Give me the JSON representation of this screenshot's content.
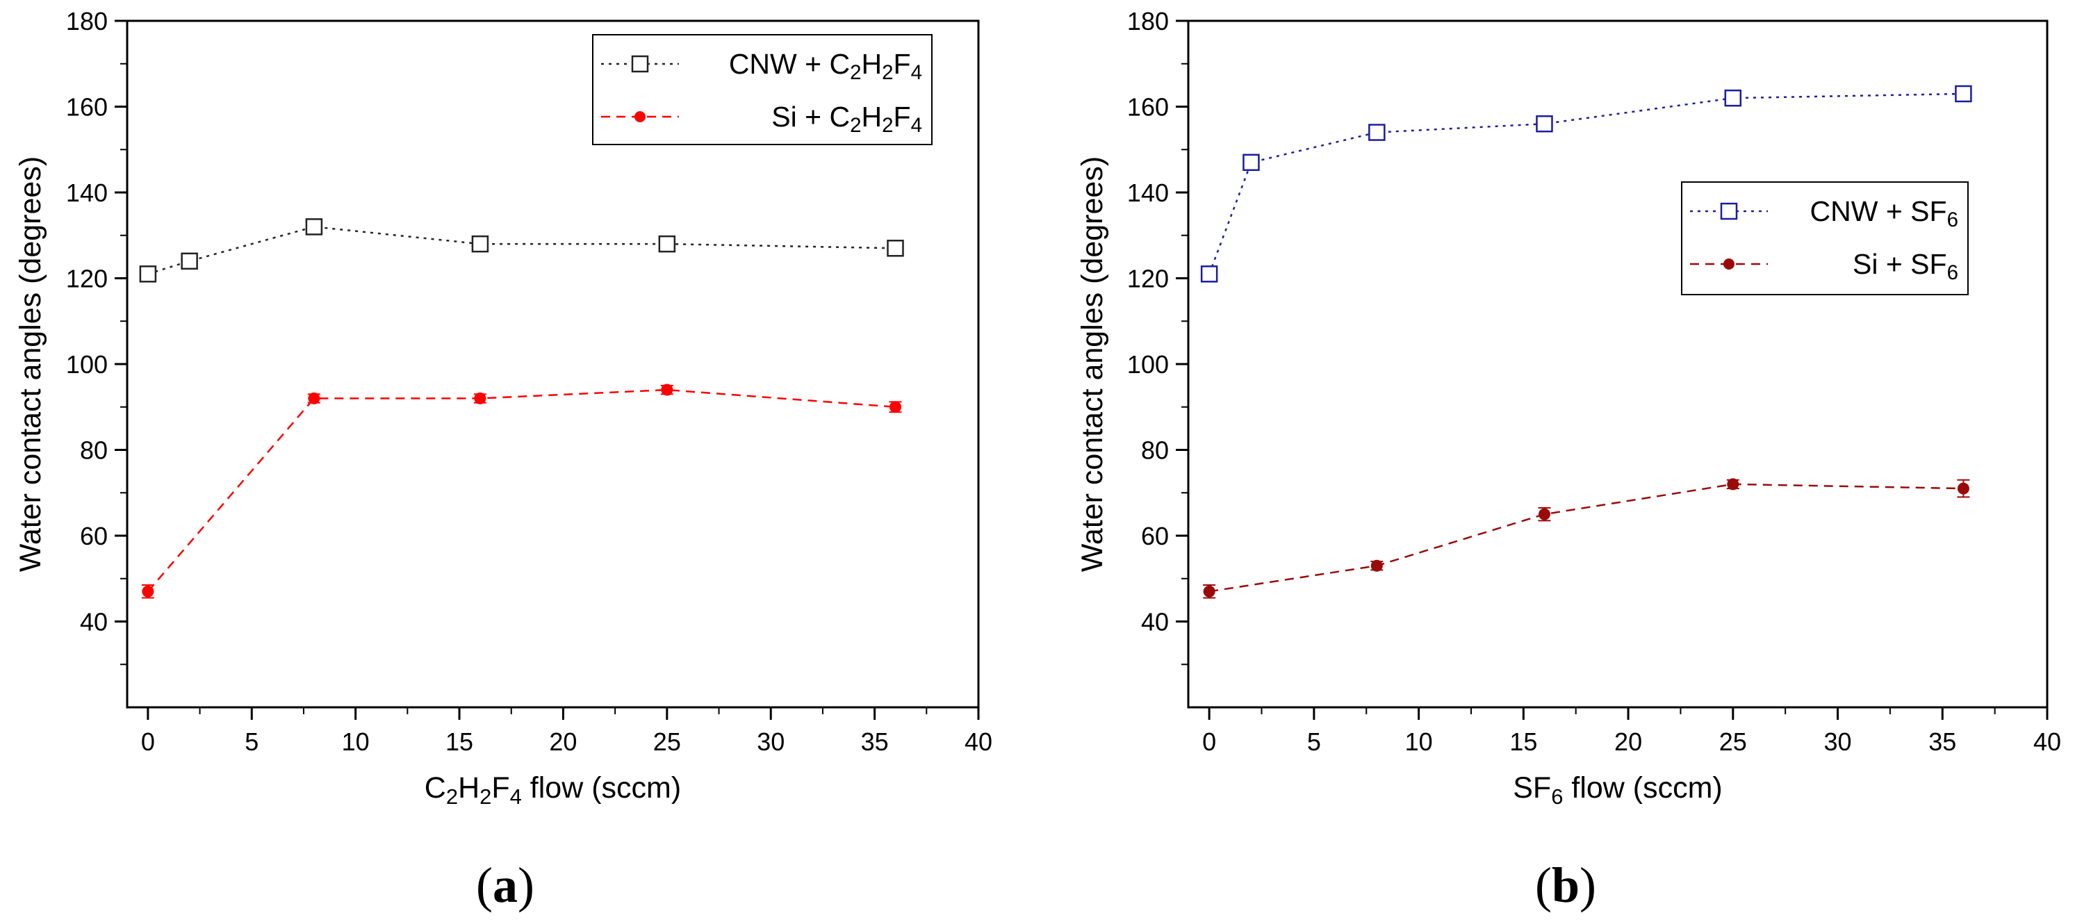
{
  "chart_data": [
    {
      "type": "line",
      "panel_label": "a",
      "xlabel_parts": [
        "C",
        "2",
        "H",
        "2",
        "F",
        "4",
        " flow (sccm)"
      ],
      "ylabel": "Water contact angles (degrees)",
      "xlim": [
        -1,
        40
      ],
      "ylim": [
        20,
        180
      ],
      "xticks": [
        0,
        5,
        10,
        15,
        20,
        25,
        30,
        35,
        40
      ],
      "yticks": [
        40,
        60,
        80,
        100,
        120,
        140,
        160,
        180
      ],
      "legend_position": "top-right",
      "series": [
        {
          "name_parts": [
            "CNW + C",
            "2",
            "H",
            "2",
            "F",
            "4"
          ],
          "color": "#222222",
          "marker": "open-square",
          "line_style": "dotted",
          "x": [
            0,
            2,
            8,
            16,
            25,
            36
          ],
          "y": [
            121,
            124,
            132,
            128,
            128,
            127
          ],
          "err": [
            1,
            1,
            1.2,
            1,
            1,
            1
          ]
        },
        {
          "name_parts": [
            "Si + C",
            "2",
            "H",
            "2",
            "F",
            "4"
          ],
          "color": "#ff0000",
          "marker": "filled-circle",
          "line_style": "dashed",
          "x": [
            0,
            8,
            16,
            25,
            36
          ],
          "y": [
            47,
            92,
            92,
            94,
            90
          ],
          "err": [
            1.5,
            1,
            1,
            1,
            1.2
          ]
        }
      ]
    },
    {
      "type": "line",
      "panel_label": "b",
      "xlabel_parts": [
        "SF",
        "6",
        " flow (sccm)"
      ],
      "ylabel": "Water contact angles (degrees)",
      "xlim": [
        -1,
        40
      ],
      "ylim": [
        20,
        180
      ],
      "xticks": [
        0,
        5,
        10,
        15,
        20,
        25,
        30,
        35,
        40
      ],
      "yticks": [
        40,
        60,
        80,
        100,
        120,
        140,
        160,
        180
      ],
      "legend_position": "right",
      "series": [
        {
          "name_parts": [
            "CNW + SF",
            "6"
          ],
          "color": "#1c1c9e",
          "marker": "open-square",
          "line_style": "dotted",
          "x": [
            0,
            2,
            8,
            16,
            25,
            36
          ],
          "y": [
            121,
            147,
            154,
            156,
            162,
            163
          ],
          "err": [
            1.5,
            1.5,
            1.2,
            1,
            1,
            1.2
          ]
        },
        {
          "name_parts": [
            "Si + SF",
            "6"
          ],
          "color": "#9b0a0a",
          "marker": "filled-circle",
          "line_style": "dashed",
          "x": [
            0,
            8,
            16,
            25,
            36
          ],
          "y": [
            47,
            53,
            65,
            72,
            71
          ],
          "err": [
            1.5,
            1,
            1.5,
            1,
            2
          ]
        }
      ]
    }
  ]
}
